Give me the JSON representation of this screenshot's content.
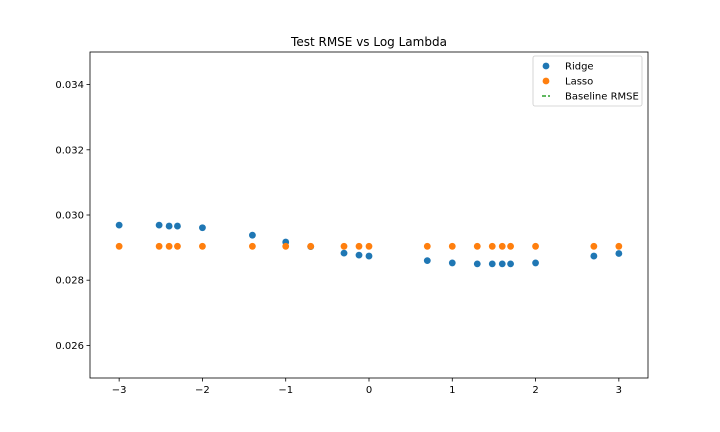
{
  "chart_data": {
    "type": "scatter",
    "title": "Test RMSE vs Log Lambda",
    "xlabel": "",
    "ylabel": "",
    "xlim": [
      -3.35,
      3.35
    ],
    "ylim": [
      0.025,
      0.035
    ],
    "xticks": [
      -3,
      -2,
      -1,
      0,
      1,
      2,
      3
    ],
    "xtick_labels": [
      "−3",
      "−2",
      "−1",
      "0",
      "1",
      "2",
      "3"
    ],
    "yticks": [
      0.026,
      0.028,
      0.03,
      0.032,
      0.034
    ],
    "ytick_labels": [
      "0.026",
      "0.028",
      "0.030",
      "0.032",
      "0.034"
    ],
    "grid": false,
    "legend_position": "top-right",
    "series": [
      {
        "name": "Ridge",
        "color": "#1f77b4",
        "marker": "circle",
        "x": [
          -3,
          -2.52,
          -2.4,
          -2.3,
          -2,
          -1.4,
          -1,
          -0.7,
          -0.3,
          -0.12,
          0,
          0.7,
          1,
          1.3,
          1.48,
          1.6,
          1.7,
          2,
          2.7,
          3
        ],
        "y": [
          0.02969,
          0.02969,
          0.02966,
          0.02966,
          0.02961,
          0.02938,
          0.02917,
          0.02903,
          0.02883,
          0.02877,
          0.02874,
          0.0286,
          0.02853,
          0.0285,
          0.0285,
          0.0285,
          0.0285,
          0.02853,
          0.02874,
          0.02882
        ]
      },
      {
        "name": "Lasso",
        "color": "#ff7f0e",
        "marker": "circle",
        "x": [
          -3,
          -2.52,
          -2.4,
          -2.3,
          -2,
          -1.4,
          -1,
          -0.7,
          -0.3,
          -0.12,
          0,
          0.7,
          1,
          1.3,
          1.48,
          1.6,
          1.7,
          2,
          2.7,
          3
        ],
        "y": [
          0.02904,
          0.02904,
          0.02904,
          0.02904,
          0.02904,
          0.02904,
          0.02904,
          0.02904,
          0.02904,
          0.02904,
          0.02904,
          0.02904,
          0.02904,
          0.02904,
          0.02904,
          0.02904,
          0.02904,
          0.02904,
          0.02904,
          0.02904
        ]
      },
      {
        "name": "Baseline RMSE",
        "color": "#2ca02c",
        "marker": "line",
        "x": [],
        "y": []
      }
    ]
  }
}
